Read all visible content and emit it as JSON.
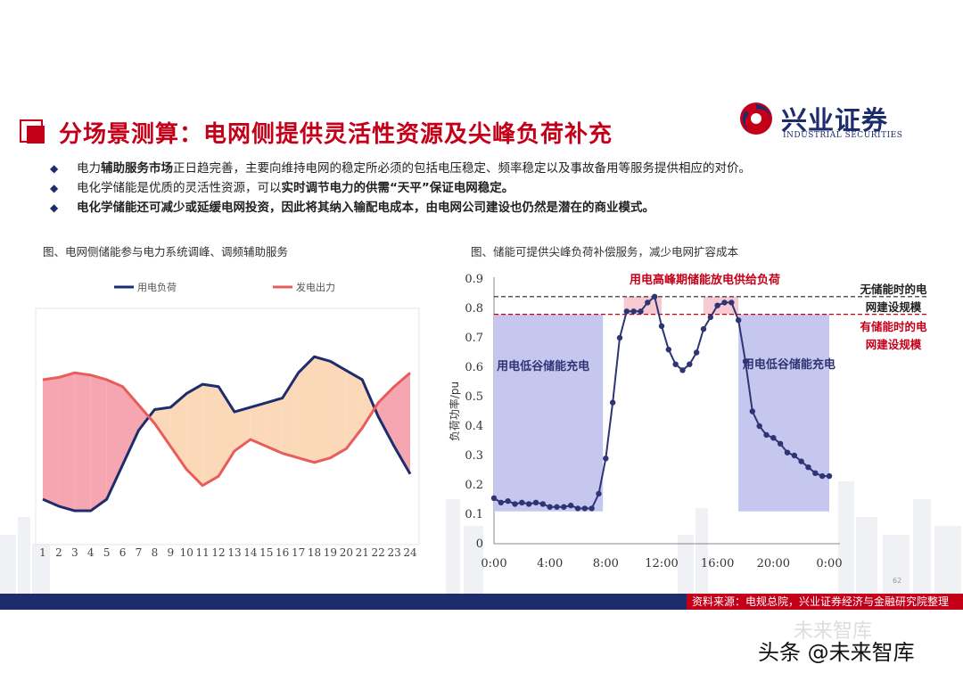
{
  "title": "分场景测算：电网侧提供灵活性资源及尖峰负荷补充",
  "logo": {
    "cn": "兴业证券",
    "en": "INDUSTRIAL SECURITIES"
  },
  "bullets": [
    {
      "pre": "电力",
      "bold": "辅助服务市场",
      "post": "正日趋完善，主要向维持电网的稳定所必须的包括电压稳定、频率稳定以及事故备用等服务提供相应的对价。"
    },
    {
      "pre": "电化学储能是优质的灵活性资源，可以",
      "bold": "实时调节电力的供需“天平”保证电网稳定。",
      "post": ""
    },
    {
      "pre": "",
      "bold": "电化学储能还可减少或延缓电网投资，因此将其纳入输配电成本，由电网公司建设也仍然是潜在的商业模式。",
      "post": ""
    }
  ],
  "page_number": "62",
  "source": "资料来源：电规总院，兴业证券经济与金融研究院整理",
  "watermark": "头条 @未来智库",
  "watermark_faint": "未来智库",
  "chart_data": [
    {
      "type": "line",
      "caption": "图、电网侧储能参与电力系统调峰、调频辅助服务",
      "categories": [
        "1",
        "2",
        "3",
        "4",
        "5",
        "6",
        "7",
        "8",
        "9",
        "10",
        "11",
        "12",
        "13",
        "14",
        "15",
        "16",
        "17",
        "18",
        "19",
        "20",
        "21",
        "22",
        "23",
        "24"
      ],
      "series": [
        {
          "name": "用电负荷",
          "color": "#1d2c6b",
          "values": [
            0.17,
            0.14,
            0.12,
            0.12,
            0.17,
            0.32,
            0.47,
            0.56,
            0.57,
            0.63,
            0.67,
            0.66,
            0.55,
            0.57,
            0.59,
            0.61,
            0.72,
            0.79,
            0.77,
            0.73,
            0.69,
            0.53,
            0.4,
            0.28
          ]
        },
        {
          "name": "发电出力",
          "color": "#e85c5c",
          "values": [
            0.69,
            0.7,
            0.72,
            0.71,
            0.69,
            0.66,
            0.58,
            0.5,
            0.4,
            0.3,
            0.23,
            0.27,
            0.38,
            0.43,
            0.4,
            0.37,
            0.35,
            0.33,
            0.35,
            0.39,
            0.48,
            0.59,
            0.66,
            0.72
          ]
        }
      ],
      "fill_colors": {
        "surplus": "#f6a6b0",
        "deficit": "#fbd8b8"
      }
    },
    {
      "type": "line",
      "caption": "图、储能可提供尖峰负荷补偿服务，减少电网扩容成本",
      "ylabel": "负荷功率/pu",
      "ylim": [
        0,
        0.9
      ],
      "yticks": [
        "0",
        "0.1",
        "0.2",
        "0.3",
        "0.4",
        "0.5",
        "0.6",
        "0.7",
        "0.8",
        "0.9"
      ],
      "xticks": [
        "0:00",
        "4:00",
        "8:00",
        "12:00",
        "16:00",
        "20:00",
        "0:00"
      ],
      "x": [
        0,
        0.5,
        1,
        1.5,
        2,
        2.5,
        3,
        3.5,
        4,
        4.5,
        5,
        5.5,
        6,
        6.5,
        7,
        7.5,
        8,
        8.5,
        9,
        9.5,
        10,
        10.5,
        11,
        11.5,
        12,
        12.5,
        13,
        13.5,
        14,
        14.5,
        15,
        15.5,
        16,
        16.5,
        17,
        17.5,
        18,
        18.5,
        19,
        19.5,
        20,
        20.5,
        21,
        21.5,
        22,
        22.5,
        23,
        23.5,
        24
      ],
      "load": [
        0.155,
        0.14,
        0.145,
        0.135,
        0.14,
        0.135,
        0.14,
        0.135,
        0.125,
        0.125,
        0.125,
        0.13,
        0.12,
        0.12,
        0.12,
        0.17,
        0.29,
        0.48,
        0.7,
        0.79,
        0.79,
        0.79,
        0.82,
        0.84,
        0.74,
        0.66,
        0.61,
        0.59,
        0.61,
        0.65,
        0.73,
        0.77,
        0.81,
        0.82,
        0.82,
        0.76,
        0.62,
        0.45,
        0.4,
        0.37,
        0.36,
        0.34,
        0.31,
        0.3,
        0.28,
        0.26,
        0.24,
        0.23,
        0.23
      ],
      "line_no_storage": 0.84,
      "line_with_storage": 0.78,
      "label_no_storage": [
        "无储能时的电",
        "网建设规模"
      ],
      "label_with_storage": [
        "有储能时的电",
        "网建设规模"
      ],
      "label_peak": "用电高峰期储能放电供给负荷",
      "label_valley": "用电低谷储能充电",
      "valley_fill_top": 0.78,
      "valley_fill_bottom": 0.11,
      "valley_ranges": [
        [
          0,
          7.8
        ],
        [
          17.5,
          24
        ]
      ],
      "peak_ranges": [
        [
          9.3,
          12
        ],
        [
          15,
          17.5
        ]
      ],
      "colors": {
        "line": "#2e3574",
        "valley": "#c6c7ee",
        "peak": "#f7c9d0",
        "no_storage": "#222222",
        "with_storage": "#c40019"
      }
    }
  ]
}
